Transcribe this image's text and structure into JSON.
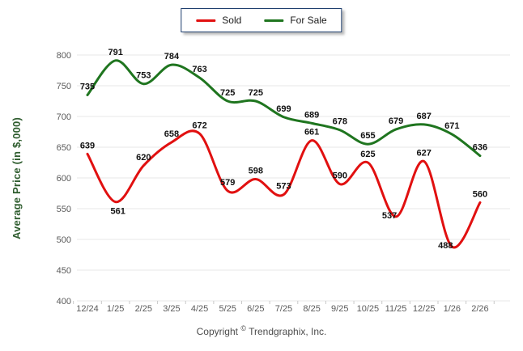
{
  "chart_data": {
    "type": "line",
    "title": "",
    "xlabel": "",
    "ylabel": "Average Price (in $,000)",
    "ylim": [
      400,
      800
    ],
    "ytick_step": 50,
    "grid": "horizontal",
    "legend_position": "top-center",
    "categories": [
      "12/24",
      "1/25",
      "2/25",
      "3/25",
      "4/25",
      "5/25",
      "6/25",
      "7/25",
      "8/25",
      "9/25",
      "10/25",
      "11/25",
      "12/25",
      "1/26",
      "2/26"
    ],
    "series": [
      {
        "name": "Sold",
        "color": "#e11010",
        "values": [
          639,
          561,
          620,
          658,
          672,
          579,
          598,
          573,
          661,
          590,
          625,
          537,
          627,
          488,
          560
        ],
        "label_placements": {
          "1": "below",
          "11": "left",
          "13": "left"
        }
      },
      {
        "name": "For Sale",
        "color": "#1f751f",
        "values": [
          735,
          791,
          753,
          784,
          763,
          725,
          725,
          699,
          689,
          678,
          655,
          679,
          687,
          671,
          636
        ],
        "label_placements": {}
      }
    ],
    "colors": {
      "gridline": "#e7e7e7",
      "tick_text": "#5a5a5a",
      "tick_mark": "#c9c9c9",
      "data_label": "#111111",
      "axis_title": "#2f5d2f",
      "legend_border": "#1f3f6e"
    }
  },
  "footer": {
    "prefix": "Copyright",
    "symbol": "©",
    "company": "Trendgraphix, Inc."
  }
}
